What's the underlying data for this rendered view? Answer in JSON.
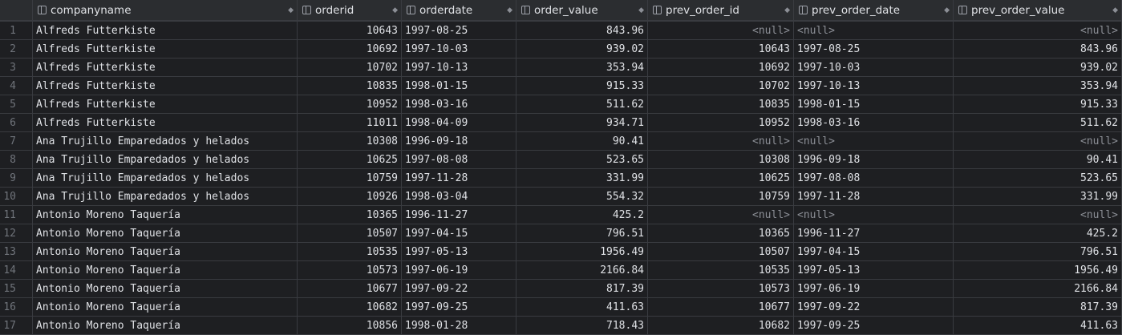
{
  "columns": [
    "companyname",
    "orderid",
    "orderdate",
    "order_value",
    "prev_order_id",
    "prev_order_date",
    "prev_order_value"
  ],
  "rows": [
    [
      "1",
      "Alfreds Futterkiste",
      "10643",
      "1997-08-25",
      "843.96",
      "<null>",
      "<null>",
      "<null>"
    ],
    [
      "2",
      "Alfreds Futterkiste",
      "10692",
      "1997-10-03",
      "939.02",
      "10643",
      "1997-08-25",
      "843.96"
    ],
    [
      "3",
      "Alfreds Futterkiste",
      "10702",
      "1997-10-13",
      "353.94",
      "10692",
      "1997-10-03",
      "939.02"
    ],
    [
      "4",
      "Alfreds Futterkiste",
      "10835",
      "1998-01-15",
      "915.33",
      "10702",
      "1997-10-13",
      "353.94"
    ],
    [
      "5",
      "Alfreds Futterkiste",
      "10952",
      "1998-03-16",
      "511.62",
      "10835",
      "1998-01-15",
      "915.33"
    ],
    [
      "6",
      "Alfreds Futterkiste",
      "11011",
      "1998-04-09",
      "934.71",
      "10952",
      "1998-03-16",
      "511.62"
    ],
    [
      "7",
      "Ana Trujillo Emparedados y helados",
      "10308",
      "1996-09-18",
      "90.41",
      "<null>",
      "<null>",
      "<null>"
    ],
    [
      "8",
      "Ana Trujillo Emparedados y helados",
      "10625",
      "1997-08-08",
      "523.65",
      "10308",
      "1996-09-18",
      "90.41"
    ],
    [
      "9",
      "Ana Trujillo Emparedados y helados",
      "10759",
      "1997-11-28",
      "331.99",
      "10625",
      "1997-08-08",
      "523.65"
    ],
    [
      "10",
      "Ana Trujillo Emparedados y helados",
      "10926",
      "1998-03-04",
      "554.32",
      "10759",
      "1997-11-28",
      "331.99"
    ],
    [
      "11",
      "Antonio Moreno Taquería",
      "10365",
      "1996-11-27",
      "425.2",
      "<null>",
      "<null>",
      "<null>"
    ],
    [
      "12",
      "Antonio Moreno Taquería",
      "10507",
      "1997-04-15",
      "796.51",
      "10365",
      "1996-11-27",
      "425.2"
    ],
    [
      "13",
      "Antonio Moreno Taquería",
      "10535",
      "1997-05-13",
      "1956.49",
      "10507",
      "1997-04-15",
      "796.51"
    ],
    [
      "14",
      "Antonio Moreno Taquería",
      "10573",
      "1997-06-19",
      "2166.84",
      "10535",
      "1997-05-13",
      "1956.49"
    ],
    [
      "15",
      "Antonio Moreno Taquería",
      "10677",
      "1997-09-22",
      "817.39",
      "10573",
      "1997-06-19",
      "2166.84"
    ],
    [
      "16",
      "Antonio Moreno Taquería",
      "10682",
      "1997-09-25",
      "411.63",
      "10677",
      "1997-09-22",
      "817.39"
    ],
    [
      "17",
      "Antonio Moreno Taquería",
      "10856",
      "1998-01-28",
      "718.43",
      "10682",
      "1997-09-25",
      "411.63"
    ]
  ],
  "icons": {
    "column": "column-icon",
    "sort": "sort-icon"
  }
}
